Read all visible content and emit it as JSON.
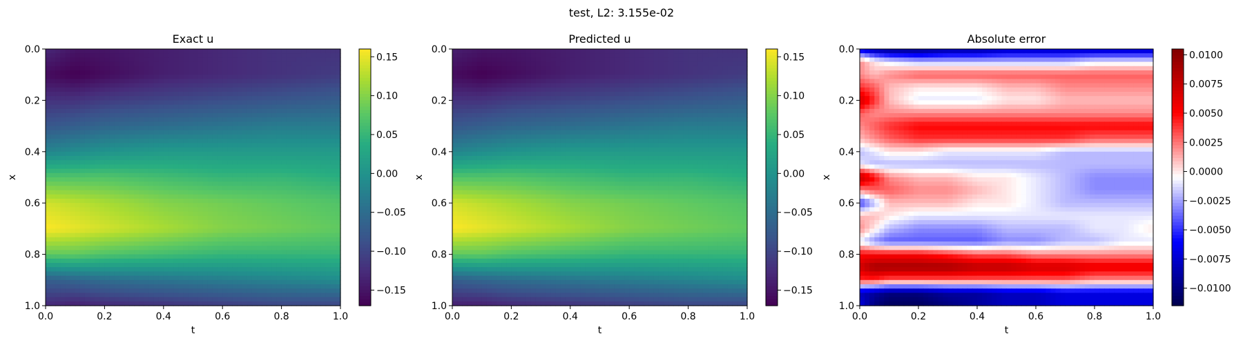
{
  "figure": {
    "suptitle": "test, L2: 3.155e-02"
  },
  "chart_data": [
    {
      "type": "heatmap",
      "title": "Exact u",
      "xlabel": "t",
      "ylabel": "x",
      "xlim": [
        0.0,
        1.0
      ],
      "ylim": [
        1.0,
        0.0
      ],
      "xticks": [
        "0.0",
        "0.2",
        "0.4",
        "0.6",
        "0.8",
        "1.0"
      ],
      "yticks": [
        "0.0",
        "0.2",
        "0.4",
        "0.6",
        "0.8",
        "1.0"
      ],
      "colormap": "viridis",
      "vmin": -0.17,
      "vmax": 0.16,
      "colorbar_ticks": [
        "0.15",
        "0.10",
        "0.05",
        "0.00",
        "−0.05",
        "−0.10",
        "−0.15"
      ],
      "field": {
        "x": [
          0.0,
          0.1,
          0.2,
          0.3,
          0.4,
          0.5,
          0.6,
          0.7,
          0.8,
          0.9,
          1.0
        ],
        "t": [
          0.0,
          0.1,
          0.2,
          0.4,
          0.6,
          0.8,
          1.0
        ],
        "values": [
          [
            -0.13,
            -0.15,
            -0.15,
            -0.14,
            -0.13,
            -0.12,
            -0.12
          ],
          [
            -0.16,
            -0.17,
            -0.16,
            -0.14,
            -0.13,
            -0.12,
            -0.11
          ],
          [
            -0.12,
            -0.12,
            -0.11,
            -0.1,
            -0.09,
            -0.08,
            -0.07
          ],
          [
            -0.08,
            -0.07,
            -0.06,
            -0.05,
            -0.04,
            -0.03,
            -0.03
          ],
          [
            -0.02,
            -0.01,
            0.0,
            0.01,
            0.01,
            0.01,
            0.01
          ],
          [
            0.07,
            0.07,
            0.07,
            0.06,
            0.05,
            0.05,
            0.04
          ],
          [
            0.14,
            0.13,
            0.12,
            0.1,
            0.09,
            0.08,
            0.07
          ],
          [
            0.16,
            0.15,
            0.14,
            0.12,
            0.1,
            0.09,
            0.08
          ],
          [
            0.08,
            0.08,
            0.07,
            0.06,
            0.05,
            0.05,
            0.05
          ],
          [
            -0.07,
            -0.06,
            -0.05,
            -0.04,
            -0.03,
            -0.02,
            -0.01
          ],
          [
            -0.13,
            -0.14,
            -0.13,
            -0.12,
            -0.11,
            -0.1,
            -0.1
          ]
        ]
      }
    },
    {
      "type": "heatmap",
      "title": "Predicted u",
      "xlabel": "t",
      "ylabel": "x",
      "xlim": [
        0.0,
        1.0
      ],
      "ylim": [
        1.0,
        0.0
      ],
      "xticks": [
        "0.0",
        "0.2",
        "0.4",
        "0.6",
        "0.8",
        "1.0"
      ],
      "yticks": [
        "0.0",
        "0.2",
        "0.4",
        "0.6",
        "0.8",
        "1.0"
      ],
      "colormap": "viridis",
      "vmin": -0.17,
      "vmax": 0.16,
      "colorbar_ticks": [
        "0.15",
        "0.10",
        "0.05",
        "0.00",
        "−0.05",
        "−0.10",
        "−0.15"
      ],
      "field": {
        "x": [
          0.0,
          0.1,
          0.2,
          0.3,
          0.4,
          0.5,
          0.6,
          0.7,
          0.8,
          0.9,
          1.0
        ],
        "t": [
          0.0,
          0.1,
          0.2,
          0.4,
          0.6,
          0.8,
          1.0
        ],
        "values": [
          [
            -0.14,
            -0.15,
            -0.15,
            -0.14,
            -0.13,
            -0.12,
            -0.12
          ],
          [
            -0.16,
            -0.17,
            -0.16,
            -0.14,
            -0.13,
            -0.12,
            -0.11
          ],
          [
            -0.12,
            -0.12,
            -0.11,
            -0.1,
            -0.09,
            -0.08,
            -0.07
          ],
          [
            -0.08,
            -0.07,
            -0.06,
            -0.05,
            -0.04,
            -0.03,
            -0.03
          ],
          [
            -0.02,
            -0.01,
            0.0,
            0.01,
            0.01,
            0.01,
            0.01
          ],
          [
            0.07,
            0.07,
            0.07,
            0.06,
            0.05,
            0.05,
            0.04
          ],
          [
            0.14,
            0.13,
            0.12,
            0.1,
            0.09,
            0.08,
            0.07
          ],
          [
            0.16,
            0.15,
            0.14,
            0.12,
            0.1,
            0.09,
            0.08
          ],
          [
            0.08,
            0.08,
            0.07,
            0.06,
            0.05,
            0.05,
            0.05
          ],
          [
            -0.07,
            -0.06,
            -0.05,
            -0.04,
            -0.03,
            -0.02,
            -0.01
          ],
          [
            -0.14,
            -0.14,
            -0.13,
            -0.12,
            -0.11,
            -0.1,
            -0.1
          ]
        ]
      }
    },
    {
      "type": "heatmap",
      "title": "Absolute error",
      "xlabel": "t",
      "ylabel": "x",
      "xlim": [
        0.0,
        1.0
      ],
      "ylim": [
        1.0,
        0.0
      ],
      "xticks": [
        "0.0",
        "0.2",
        "0.4",
        "0.6",
        "0.8",
        "1.0"
      ],
      "yticks": [
        "0.0",
        "0.2",
        "0.4",
        "0.6",
        "0.8",
        "1.0"
      ],
      "colormap": "seismic",
      "vmin": -0.0115,
      "vmax": 0.0105,
      "colorbar_ticks": [
        "0.0100",
        "0.0075",
        "0.0050",
        "0.0025",
        "0.0000",
        "−0.0025",
        "−0.0050",
        "−0.0075",
        "−0.0100"
      ],
      "field": {
        "x": [
          0.0,
          0.05,
          0.1,
          0.15,
          0.2,
          0.25,
          0.3,
          0.35,
          0.4,
          0.45,
          0.5,
          0.55,
          0.6,
          0.65,
          0.7,
          0.75,
          0.8,
          0.85,
          0.9,
          0.95,
          1.0
        ],
        "t": [
          0.0,
          0.05,
          0.1,
          0.2,
          0.3,
          0.4,
          0.5,
          0.6,
          0.7,
          0.8,
          0.9,
          1.0
        ],
        "values": [
          [
            -0.007,
            -0.009,
            -0.01,
            -0.01,
            -0.009,
            -0.009,
            -0.008,
            -0.008,
            -0.008,
            -0.008,
            -0.008,
            -0.008
          ],
          [
            0.002,
            0.0,
            -0.001,
            -0.002,
            -0.002,
            -0.002,
            -0.002,
            -0.002,
            -0.002,
            -0.001,
            -0.001,
            -0.001
          ],
          [
            0.002,
            0.001,
            0.002,
            0.003,
            0.003,
            0.003,
            0.003,
            0.003,
            0.003,
            0.003,
            0.003,
            0.003
          ],
          [
            0.004,
            0.003,
            0.001,
            0.0,
            0.0,
            0.0,
            0.001,
            0.001,
            0.002,
            0.002,
            0.002,
            0.002
          ],
          [
            0.007,
            0.004,
            0.001,
            -0.001,
            -0.001,
            -0.001,
            0.0,
            0.0,
            0.001,
            0.001,
            0.001,
            0.001
          ],
          [
            0.003,
            0.002,
            0.002,
            0.002,
            0.002,
            0.002,
            0.002,
            0.002,
            0.002,
            0.002,
            0.002,
            0.002
          ],
          [
            0.002,
            0.003,
            0.004,
            0.005,
            0.005,
            0.005,
            0.005,
            0.005,
            0.005,
            0.005,
            0.005,
            0.005
          ],
          [
            0.001,
            0.002,
            0.003,
            0.004,
            0.004,
            0.004,
            0.004,
            0.004,
            0.004,
            0.003,
            0.003,
            0.003
          ],
          [
            -0.002,
            -0.001,
            0.0,
            0.0,
            -0.001,
            -0.001,
            -0.001,
            -0.001,
            -0.002,
            -0.002,
            -0.002,
            -0.002
          ],
          [
            -0.001,
            -0.002,
            -0.002,
            -0.002,
            -0.002,
            -0.002,
            -0.002,
            -0.002,
            -0.002,
            -0.002,
            -0.002,
            -0.002
          ],
          [
            0.008,
            0.005,
            0.002,
            0.001,
            0.001,
            0.0,
            0.0,
            -0.001,
            -0.002,
            -0.003,
            -0.003,
            -0.003
          ],
          [
            0.002,
            0.003,
            0.003,
            0.002,
            0.002,
            0.001,
            0.0,
            -0.001,
            -0.002,
            -0.003,
            -0.003,
            -0.003
          ],
          [
            -0.005,
            -0.002,
            0.001,
            0.001,
            0.001,
            0.0,
            0.0,
            -0.001,
            -0.002,
            -0.002,
            -0.002,
            -0.002
          ],
          [
            0.001,
            0.001,
            0.0,
            -0.001,
            -0.001,
            -0.001,
            -0.001,
            -0.001,
            -0.001,
            -0.001,
            -0.001,
            -0.001
          ],
          [
            0.002,
            0.0,
            -0.002,
            -0.003,
            -0.003,
            -0.003,
            -0.002,
            -0.002,
            -0.002,
            -0.001,
            -0.001,
            0.0
          ],
          [
            -0.001,
            -0.003,
            -0.004,
            -0.004,
            -0.004,
            -0.004,
            -0.003,
            -0.003,
            -0.002,
            -0.002,
            -0.001,
            -0.001
          ],
          [
            0.005,
            0.005,
            0.005,
            0.005,
            0.004,
            0.003,
            0.003,
            0.002,
            0.002,
            0.002,
            0.002,
            0.002
          ],
          [
            0.007,
            0.009,
            0.009,
            0.009,
            0.009,
            0.008,
            0.008,
            0.007,
            0.007,
            0.006,
            0.006,
            0.006
          ],
          [
            0.004,
            0.004,
            0.003,
            0.003,
            0.003,
            0.003,
            0.003,
            0.003,
            0.003,
            0.002,
            0.002,
            0.002
          ],
          [
            -0.008,
            -0.009,
            -0.01,
            -0.01,
            -0.009,
            -0.009,
            -0.008,
            -0.008,
            -0.007,
            -0.007,
            -0.007,
            -0.007
          ],
          [
            -0.007,
            -0.01,
            -0.011,
            -0.011,
            -0.01,
            -0.009,
            -0.008,
            -0.008,
            -0.007,
            -0.007,
            -0.007,
            -0.007
          ]
        ]
      }
    }
  ]
}
